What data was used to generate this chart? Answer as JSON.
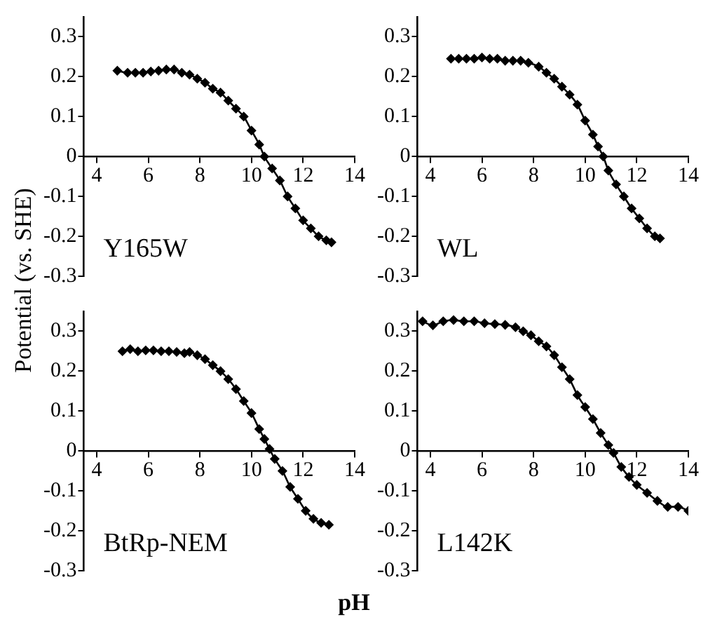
{
  "chart_data": [
    {
      "type": "line",
      "ylabel": "Potential (vs. SHE)",
      "annotations": [
        "Y165W"
      ],
      "xlim": [
        3.5,
        14
      ],
      "xticks": [
        4,
        6,
        8,
        10,
        12,
        14
      ],
      "ylim": [
        -0.3,
        0.35
      ],
      "yticks": [
        -0.3,
        -0.2,
        -0.1,
        0,
        0.1,
        0.2,
        0.3
      ],
      "grid": false,
      "legend": false,
      "marker": "diamond",
      "line_style": "solid",
      "series": [
        {
          "color": "#000000",
          "x": [
            4.8,
            5.2,
            5.5,
            5.8,
            6.1,
            6.4,
            6.7,
            7.0,
            7.3,
            7.6,
            7.9,
            8.2,
            8.5,
            8.8,
            9.1,
            9.4,
            9.7,
            10.0,
            10.3,
            10.5,
            10.8,
            11.1,
            11.4,
            11.7,
            12.0,
            12.3,
            12.6,
            12.9,
            13.1
          ],
          "values": [
            0.215,
            0.21,
            0.21,
            0.21,
            0.213,
            0.215,
            0.218,
            0.218,
            0.21,
            0.205,
            0.195,
            0.185,
            0.17,
            0.16,
            0.14,
            0.12,
            0.1,
            0.065,
            0.03,
            0.0,
            -0.03,
            -0.06,
            -0.1,
            -0.13,
            -0.16,
            -0.18,
            -0.2,
            -0.21,
            -0.215
          ]
        }
      ]
    },
    {
      "type": "line",
      "annotations": [
        "WL"
      ],
      "xlim": [
        3.5,
        14
      ],
      "xticks": [
        4,
        6,
        8,
        10,
        12,
        14
      ],
      "ylim": [
        -0.3,
        0.35
      ],
      "yticks": [
        -0.3,
        -0.2,
        -0.1,
        0,
        0.1,
        0.2,
        0.3
      ],
      "grid": false,
      "legend": false,
      "marker": "diamond",
      "line_style": "solid",
      "series": [
        {
          "color": "#000000",
          "x": [
            4.8,
            5.1,
            5.4,
            5.7,
            6.0,
            6.3,
            6.6,
            6.9,
            7.2,
            7.5,
            7.8,
            8.2,
            8.5,
            8.8,
            9.1,
            9.4,
            9.7,
            10.0,
            10.3,
            10.5,
            10.7,
            10.9,
            11.2,
            11.5,
            11.8,
            12.1,
            12.4,
            12.7,
            12.9
          ],
          "values": [
            0.245,
            0.245,
            0.245,
            0.245,
            0.248,
            0.245,
            0.245,
            0.24,
            0.24,
            0.24,
            0.235,
            0.225,
            0.21,
            0.195,
            0.175,
            0.155,
            0.13,
            0.09,
            0.055,
            0.025,
            0.0,
            -0.035,
            -0.07,
            -0.1,
            -0.13,
            -0.155,
            -0.18,
            -0.2,
            -0.205
          ]
        }
      ]
    },
    {
      "type": "line",
      "xlabel": "pH",
      "annotations": [
        "BtRp-NEM"
      ],
      "xlim": [
        3.5,
        14
      ],
      "xticks": [
        4,
        6,
        8,
        10,
        12,
        14
      ],
      "ylim": [
        -0.3,
        0.35
      ],
      "yticks": [
        -0.3,
        -0.2,
        -0.1,
        0,
        0.1,
        0.2,
        0.3
      ],
      "grid": false,
      "legend": false,
      "marker": "diamond",
      "line_style": "solid",
      "series": [
        {
          "color": "#000000",
          "x": [
            5.0,
            5.3,
            5.6,
            5.9,
            6.2,
            6.5,
            6.8,
            7.1,
            7.4,
            7.6,
            7.9,
            8.2,
            8.5,
            8.8,
            9.1,
            9.4,
            9.7,
            10.0,
            10.3,
            10.5,
            10.7,
            10.9,
            11.2,
            11.5,
            11.8,
            12.1,
            12.4,
            12.7,
            13.0
          ],
          "values": [
            0.25,
            0.255,
            0.25,
            0.252,
            0.252,
            0.25,
            0.25,
            0.248,
            0.245,
            0.248,
            0.24,
            0.23,
            0.215,
            0.2,
            0.18,
            0.155,
            0.125,
            0.095,
            0.055,
            0.03,
            0.005,
            -0.02,
            -0.05,
            -0.09,
            -0.12,
            -0.15,
            -0.17,
            -0.18,
            -0.185
          ]
        }
      ]
    },
    {
      "type": "line",
      "annotations": [
        "L142K"
      ],
      "xlim": [
        3.5,
        14
      ],
      "xticks": [
        4,
        6,
        8,
        10,
        12,
        14
      ],
      "ylim": [
        -0.3,
        0.35
      ],
      "yticks": [
        -0.3,
        -0.2,
        -0.1,
        0,
        0.1,
        0.2,
        0.3
      ],
      "grid": false,
      "legend": false,
      "marker": "diamond",
      "line_style": "solid",
      "series": [
        {
          "color": "#000000",
          "x": [
            3.7,
            4.1,
            4.5,
            4.9,
            5.3,
            5.7,
            6.1,
            6.5,
            6.9,
            7.3,
            7.6,
            7.9,
            8.2,
            8.5,
            8.8,
            9.1,
            9.4,
            9.7,
            10.0,
            10.3,
            10.6,
            10.9,
            11.1,
            11.4,
            11.7,
            12.0,
            12.4,
            12.8,
            13.2,
            13.6,
            14.0
          ],
          "values": [
            0.325,
            0.315,
            0.325,
            0.328,
            0.325,
            0.325,
            0.32,
            0.318,
            0.316,
            0.31,
            0.3,
            0.29,
            0.275,
            0.262,
            0.24,
            0.21,
            0.18,
            0.14,
            0.11,
            0.08,
            0.045,
            0.015,
            -0.005,
            -0.04,
            -0.065,
            -0.085,
            -0.105,
            -0.125,
            -0.14,
            -0.14,
            -0.15
          ]
        }
      ]
    }
  ]
}
